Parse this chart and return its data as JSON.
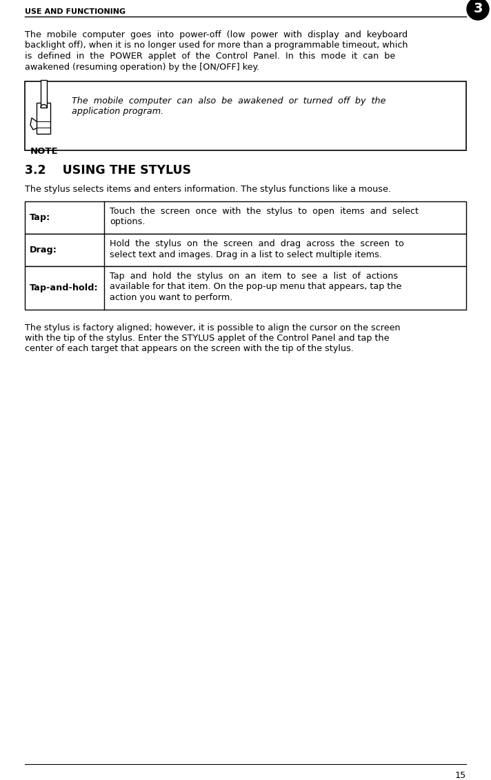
{
  "page_title": "USE AND FUNCTIONING",
  "chapter_num": "3",
  "bg_color": "#ffffff",
  "text_color": "#000000",
  "para1_lines": [
    "The  mobile  computer  goes  into  power-off  (low  power  with  display  and  keyboard",
    "backlight off), when it is no longer used for more than a programmable timeout, which",
    "is  defined  in  the  POWER  applet  of  the  Control  Panel.  In  this  mode  it  can  be",
    "awakened (resuming operation) by the [ON/OFF] key."
  ],
  "note_lines": [
    "The  mobile  computer  can  also  be  awakened  or  turned  off  by  the",
    "application program."
  ],
  "note_label": "NOTE",
  "section_num": "3.2",
  "section_title": "USING THE STYLUS",
  "section_intro": "The stylus selects items and enters information. The stylus functions like a mouse.",
  "table_rows": [
    {
      "term": "Tap",
      "definition_lines": [
        "Touch  the  screen  once  with  the  stylus  to  open  items  and  select",
        "options."
      ]
    },
    {
      "term": "Drag",
      "definition_lines": [
        "Hold  the  stylus  on  the  screen  and  drag  across  the  screen  to",
        "select text and images. Drag in a list to select multiple items."
      ]
    },
    {
      "term": "Tap-and-hold",
      "definition_lines": [
        "Tap  and  hold  the  stylus  on  an  item  to  see  a  list  of  actions",
        "available for that item. On the pop-up menu that appears, tap the",
        "action you want to perform."
      ]
    }
  ],
  "closing_lines": [
    "The stylus is factory aligned; however, it is possible to align the cursor on the screen",
    "with the tip of the stylus. Enter the STYLUS applet of the Control Panel and tap the",
    "center of each target that appears on the screen with the tip of the stylus."
  ],
  "page_number": "15"
}
